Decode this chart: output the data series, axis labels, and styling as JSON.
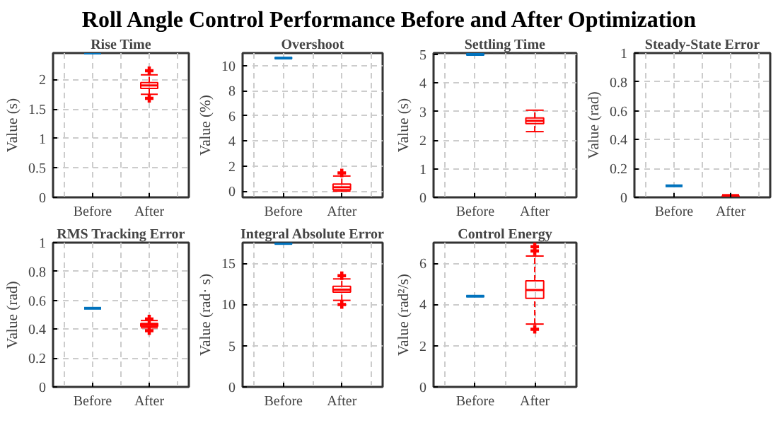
{
  "chart_data": [
    {
      "type": "other",
      "title": "Roll Angle Control Performance Before and After Optimization"
    },
    {
      "type": "box",
      "title": "Rise Time",
      "ylabel": "Value (s)",
      "categories": [
        "Before",
        "After"
      ],
      "colors": [
        "#0072bd",
        "#ff0000"
      ],
      "ylim": [
        0,
        2.45
      ],
      "yticks": [
        0,
        0.5,
        1,
        1.5,
        2
      ],
      "grid": true,
      "marker": "cross",
      "boxes": [
        {
          "low": 2.45,
          "q1": 2.45,
          "median": 2.45,
          "q3": 2.45,
          "high": 2.45
        },
        {
          "low": 1.75,
          "q1": 1.85,
          "median": 1.9,
          "q3": 1.95,
          "high": 2.08,
          "outliers": [
            1.68,
            2.15
          ]
        }
      ]
    },
    {
      "type": "box",
      "title": "Overshoot",
      "ylabel": "Value (%)",
      "categories": [
        "Before",
        "After"
      ],
      "colors": [
        "#0072bd",
        "#ff0000"
      ],
      "ylim": [
        -0.5,
        11
      ],
      "yticks": [
        0,
        2,
        4,
        6,
        8,
        10
      ],
      "grid": true,
      "marker": "cross",
      "boxes": [
        {
          "low": 10.6,
          "q1": 10.6,
          "median": 10.6,
          "q3": 10.6,
          "high": 10.6
        },
        {
          "low": 0,
          "q1": 0.1,
          "median": 0.3,
          "q3": 0.55,
          "high": 1.2,
          "outliers": [
            1.45
          ]
        }
      ]
    },
    {
      "type": "box",
      "title": "Settling Time",
      "ylabel": "Value (s)",
      "categories": [
        "Before",
        "After"
      ],
      "colors": [
        "#0072bd",
        "#ff0000"
      ],
      "ylim": [
        0,
        5.05
      ],
      "yticks": [
        0,
        1,
        2,
        3,
        4,
        5
      ],
      "grid": true,
      "marker": "cross",
      "boxes": [
        {
          "low": 5.0,
          "q1": 5.0,
          "median": 5.0,
          "q3": 5.0,
          "high": 5.0
        },
        {
          "low": 2.3,
          "q1": 2.58,
          "median": 2.68,
          "q3": 2.78,
          "high": 3.05
        }
      ]
    },
    {
      "type": "box",
      "title": "Steady-State Error",
      "ylabel": "Value (rad)",
      "categories": [
        "Before",
        "After"
      ],
      "colors": [
        "#0072bd",
        "#ff0000"
      ],
      "ylim": [
        0,
        1
      ],
      "yticks": [
        0,
        0.2,
        0.4,
        0.6,
        0.8,
        1
      ],
      "grid": true,
      "marker": "cross",
      "boxes": [
        {
          "low": 0.08,
          "q1": 0.08,
          "median": 0.08,
          "q3": 0.08,
          "high": 0.08
        },
        {
          "low": 0,
          "q1": 0.003,
          "median": 0.006,
          "q3": 0.01,
          "high": 0.018
        }
      ]
    },
    {
      "type": "box",
      "title": "RMS Tracking Error",
      "ylabel": "Value (rad)",
      "categories": [
        "Before",
        "After"
      ],
      "colors": [
        "#0072bd",
        "#ff0000"
      ],
      "ylim": [
        0,
        1
      ],
      "yticks": [
        0,
        0.2,
        0.4,
        0.6,
        0.8,
        1
      ],
      "grid": true,
      "marker": "cross",
      "boxes": [
        {
          "low": 0.545,
          "q1": 0.545,
          "median": 0.545,
          "q3": 0.545,
          "high": 0.545
        },
        {
          "low": 0.41,
          "q1": 0.42,
          "median": 0.43,
          "q3": 0.44,
          "high": 0.46,
          "outliers": [
            0.39,
            0.47
          ]
        }
      ]
    },
    {
      "type": "box",
      "title": "Integral Absolute Error",
      "ylabel": "Value (rad· s)",
      "categories": [
        "Before",
        "After"
      ],
      "colors": [
        "#0072bd",
        "#ff0000"
      ],
      "ylim": [
        0,
        17.5
      ],
      "yticks": [
        0,
        5,
        10,
        15
      ],
      "grid": true,
      "marker": "cross",
      "boxes": [
        {
          "low": 17.4,
          "q1": 17.4,
          "median": 17.4,
          "q3": 17.4,
          "high": 17.4
        },
        {
          "low": 10.5,
          "q1": 11.5,
          "median": 11.8,
          "q3": 12.2,
          "high": 13.1,
          "outliers": [
            10.0,
            13.5
          ]
        }
      ]
    },
    {
      "type": "box",
      "title": "Control Energy",
      "ylabel": "Value (rad²/s)",
      "categories": [
        "Before",
        "After"
      ],
      "colors": [
        "#0072bd",
        "#ff0000"
      ],
      "ylim": [
        0,
        7
      ],
      "yticks": [
        0,
        2,
        4,
        6
      ],
      "grid": true,
      "marker": "cross",
      "boxes": [
        {
          "low": 4.4,
          "q1": 4.4,
          "median": 4.4,
          "q3": 4.4,
          "high": 4.4
        },
        {
          "low": 3.05,
          "q1": 4.3,
          "median": 4.7,
          "q3": 5.15,
          "high": 6.35,
          "outliers": [
            2.8,
            6.6,
            6.8
          ]
        }
      ]
    }
  ]
}
